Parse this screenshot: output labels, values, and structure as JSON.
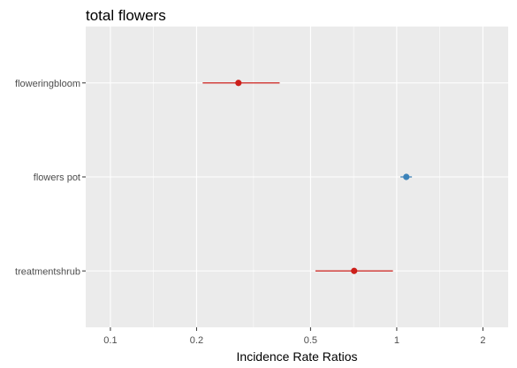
{
  "chart_data": {
    "type": "forest",
    "title": "total flowers",
    "xlabel": "Incidence Rate Ratios",
    "ylabel": "",
    "x_scale": "log10",
    "xlim": [
      0.082,
      2.45
    ],
    "x_ticks": [
      {
        "value": 0.1,
        "label": "0.1"
      },
      {
        "value": 0.2,
        "label": "0.2"
      },
      {
        "value": 0.5,
        "label": "0.5"
      },
      {
        "value": 1,
        "label": "1"
      },
      {
        "value": 2,
        "label": "2"
      }
    ],
    "x_minor_ticks": [
      0.1414,
      0.3162,
      0.7071,
      1.4142
    ],
    "reference_line": 1,
    "grid": true,
    "terms": [
      {
        "term": "floweringbloom",
        "estimate": 0.28,
        "conf_low": 0.21,
        "conf_high": 0.39,
        "color": "#cc1f1a"
      },
      {
        "term": "flowers pot",
        "estimate": 1.08,
        "conf_low": 1.03,
        "conf_high": 1.13,
        "color": "#3b82b9"
      },
      {
        "term": "treatmentshrub",
        "estimate": 0.71,
        "conf_low": 0.52,
        "conf_high": 0.97,
        "color": "#cc1f1a"
      }
    ]
  },
  "colors": {
    "panel_background": "#ebebeb",
    "grid": "#ffffff",
    "tick_text": "#4d4d4d",
    "negative": "#cc1f1a",
    "positive": "#3b82b9"
  }
}
